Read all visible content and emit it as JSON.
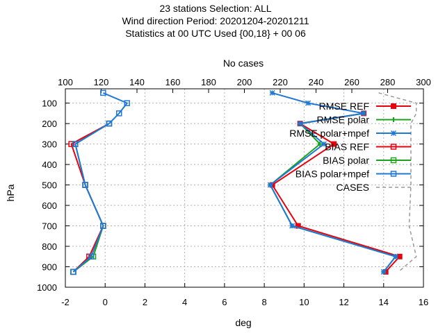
{
  "chart_data": {
    "type": "line",
    "title_lines": [
      "23 stations Selection: ALL",
      "Wind direction  Period: 20201204-20201211",
      "Statistics at 00 UTC  Used {00,18} + 00 06"
    ],
    "xlabel": "deg",
    "ylabel": "hPa",
    "x2label": "No cases",
    "xlim": [
      -2,
      16
    ],
    "ylim": [
      1000,
      30
    ],
    "x2lim": [
      100,
      300
    ],
    "x_ticks": [
      -2,
      0,
      2,
      4,
      6,
      8,
      10,
      12,
      14,
      16
    ],
    "y_ticks": [
      100,
      200,
      300,
      400,
      500,
      600,
      700,
      800,
      900,
      1000
    ],
    "x2_ticks": [
      100,
      120,
      140,
      160,
      180,
      200,
      220,
      240,
      260,
      280,
      300
    ],
    "grid": true,
    "legend_position": "top-right",
    "levels": [
      50,
      100,
      150,
      200,
      300,
      400,
      500,
      700,
      850,
      925
    ],
    "series": [
      {
        "name": "RMSE REF",
        "color": "#e8000b",
        "marker": "filled-square",
        "dashed": false,
        "axis": "x",
        "points": [
          [
            13.0,
            150
          ],
          [
            9.8,
            200
          ],
          [
            11.5,
            300
          ],
          [
            8.4,
            500
          ],
          [
            9.7,
            700
          ],
          [
            14.8,
            850
          ],
          [
            14.1,
            925
          ]
        ]
      },
      {
        "name": "RMSE polar",
        "color": "#1aa31a",
        "marker": "plus",
        "dashed": false,
        "axis": "x",
        "points": [
          [
            13.0,
            150
          ],
          [
            9.8,
            200
          ],
          [
            10.8,
            300
          ],
          [
            8.3,
            500
          ],
          [
            9.4,
            700
          ],
          [
            14.6,
            850
          ],
          [
            14.0,
            925
          ]
        ]
      },
      {
        "name": "RMSE polar+mpef",
        "color": "#1f77d8",
        "marker": "star",
        "dashed": false,
        "axis": "x",
        "points": [
          [
            8.4,
            50
          ],
          [
            10.2,
            100
          ],
          [
            13.0,
            150
          ],
          [
            9.8,
            200
          ],
          [
            11.0,
            300
          ],
          [
            8.3,
            500
          ],
          [
            9.4,
            700
          ],
          [
            14.6,
            850
          ],
          [
            14.0,
            925
          ]
        ]
      },
      {
        "name": "BIAS REF",
        "color": "#e8000b",
        "marker": "open-square",
        "dashed": false,
        "axis": "x",
        "points": [
          [
            0.2,
            200
          ],
          [
            -1.7,
            300
          ],
          [
            -1.0,
            500
          ],
          [
            -0.1,
            700
          ],
          [
            -0.8,
            850
          ],
          [
            -1.6,
            925
          ]
        ]
      },
      {
        "name": "BIAS polar",
        "color": "#1aa31a",
        "marker": "open-square",
        "dashed": false,
        "axis": "x",
        "points": [
          [
            0.2,
            200
          ],
          [
            -1.5,
            300
          ],
          [
            -1.0,
            500
          ],
          [
            -0.1,
            700
          ],
          [
            -0.6,
            850
          ],
          [
            -1.6,
            925
          ]
        ]
      },
      {
        "name": "BIAS polar+mpef",
        "color": "#1f77d8",
        "marker": "open-square",
        "dashed": false,
        "axis": "x",
        "points": [
          [
            -0.1,
            50
          ],
          [
            1.1,
            100
          ],
          [
            0.7,
            150
          ],
          [
            0.2,
            200
          ],
          [
            -1.5,
            300
          ],
          [
            -1.0,
            500
          ],
          [
            -0.1,
            700
          ],
          [
            -0.7,
            850
          ],
          [
            -1.6,
            925
          ]
        ]
      },
      {
        "name": "CASES",
        "color": "#999999",
        "marker": "none",
        "dashed": true,
        "axis": "x2",
        "points": [
          [
            275,
            50
          ],
          [
            296,
            100
          ],
          [
            296,
            150
          ],
          [
            293,
            200
          ],
          [
            293,
            300
          ],
          [
            293,
            400
          ],
          [
            293,
            500
          ],
          [
            292,
            700
          ],
          [
            296,
            850
          ],
          [
            286,
            925
          ]
        ]
      }
    ]
  }
}
